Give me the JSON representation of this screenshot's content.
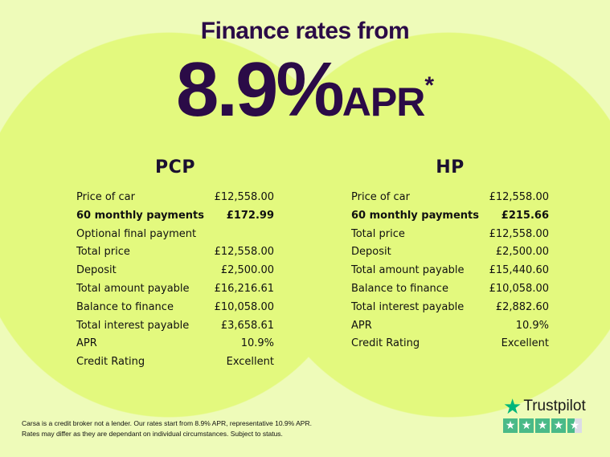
{
  "header": {
    "title": "Finance rates from",
    "rate": "8.9%",
    "rate_suffix": "APR",
    "asterisk": "*"
  },
  "pcp": {
    "title": "PCP",
    "rows": [
      {
        "label": "Price of car",
        "value": "£12,558.00"
      },
      {
        "label": "60 monthly payments",
        "value": "£172.99",
        "bold": true
      },
      {
        "label": "Optional final payment",
        "value": ""
      },
      {
        "label": "Total price",
        "value": "£12,558.00"
      },
      {
        "label": "Deposit",
        "value": "£2,500.00"
      },
      {
        "label": "Total amount payable",
        "value": "£16,216.61"
      },
      {
        "label": "Balance to finance",
        "value": "£10,058.00"
      },
      {
        "label": "Total interest payable",
        "value": "£3,658.61"
      },
      {
        "label": "APR",
        "value": "10.9%"
      },
      {
        "label": "Credit Rating",
        "value": "Excellent"
      }
    ]
  },
  "hp": {
    "title": "HP",
    "rows": [
      {
        "label": "Price of car",
        "value": "£12,558.00"
      },
      {
        "label": "60 monthly payments",
        "value": "£215.66",
        "bold": true
      },
      {
        "label": "Total price",
        "value": "£12,558.00"
      },
      {
        "label": "Deposit",
        "value": "£2,500.00"
      },
      {
        "label": "Total amount payable",
        "value": "£15,440.60"
      },
      {
        "label": "Balance to finance",
        "value": "£10,058.00"
      },
      {
        "label": "Total interest payable",
        "value": "£2,882.60"
      },
      {
        "label": "APR",
        "value": "10.9%"
      },
      {
        "label": "Credit Rating",
        "value": "Excellent"
      }
    ]
  },
  "disclaimer": {
    "line1": "Carsa is a credit broker not a lender. Our rates start from 8.9% APR, representative 10.9% APR.",
    "line2": "Rates may differ as they are dependant on individual circumstances. Subject to status."
  },
  "trustpilot": {
    "name": "Trustpilot",
    "rating_stars": 4.5,
    "max_stars": 5,
    "icon": "star-icon"
  },
  "colors": {
    "background": "#eefbb9",
    "circle": "#e3f97e",
    "headline": "#2b0b47",
    "trustpilot_green": "#00b67a"
  }
}
